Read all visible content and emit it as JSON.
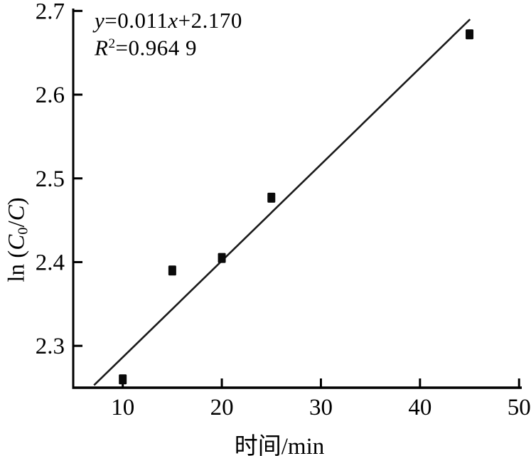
{
  "chart_data": {
    "type": "scatter",
    "title": "",
    "xlabel": "时间/min",
    "ylabel": "ln (C0/C)",
    "ylabel_parts": {
      "ln": "ln (",
      "c1": "C",
      "sub": "0",
      "slash": "/",
      "c2": "C",
      "close": ")"
    },
    "annotation": {
      "eq": {
        "y": "y",
        "mid": "=0.011",
        "x": "x",
        "tail": "+2.170"
      },
      "r2": {
        "r": "R",
        "sup": "2",
        "tail": "=0.964 9"
      }
    },
    "fit_line": {
      "equation": "y=0.011x+2.170",
      "r_squared": "0.964 9",
      "x_start": 7.1,
      "y_start": 2.253,
      "x_end": 45.05,
      "y_end": 2.69
    },
    "points": [
      {
        "x": 10,
        "y": 2.26
      },
      {
        "x": 15,
        "y": 2.39
      },
      {
        "x": 20,
        "y": 2.405
      },
      {
        "x": 25,
        "y": 2.477
      },
      {
        "x": 45,
        "y": 2.672
      }
    ],
    "x_ticks": [
      10,
      20,
      30,
      40,
      50
    ],
    "x_tick_labels": [
      "10",
      "20",
      "30",
      "40",
      "50"
    ],
    "y_ticks": [
      2.3,
      2.4,
      2.5,
      2.6,
      2.7
    ],
    "y_tick_labels": [
      "2.3",
      "2.4",
      "2.5",
      "2.6",
      "2.7"
    ],
    "xlim": [
      5.0,
      50.2
    ],
    "ylim": [
      2.25,
      2.702
    ],
    "grid": false,
    "legend": null,
    "colors": {
      "background": "#ffffff",
      "axis": "#000000",
      "marker": "#0a0a0a",
      "line": "#1a1a1a",
      "text": "#000000"
    }
  }
}
